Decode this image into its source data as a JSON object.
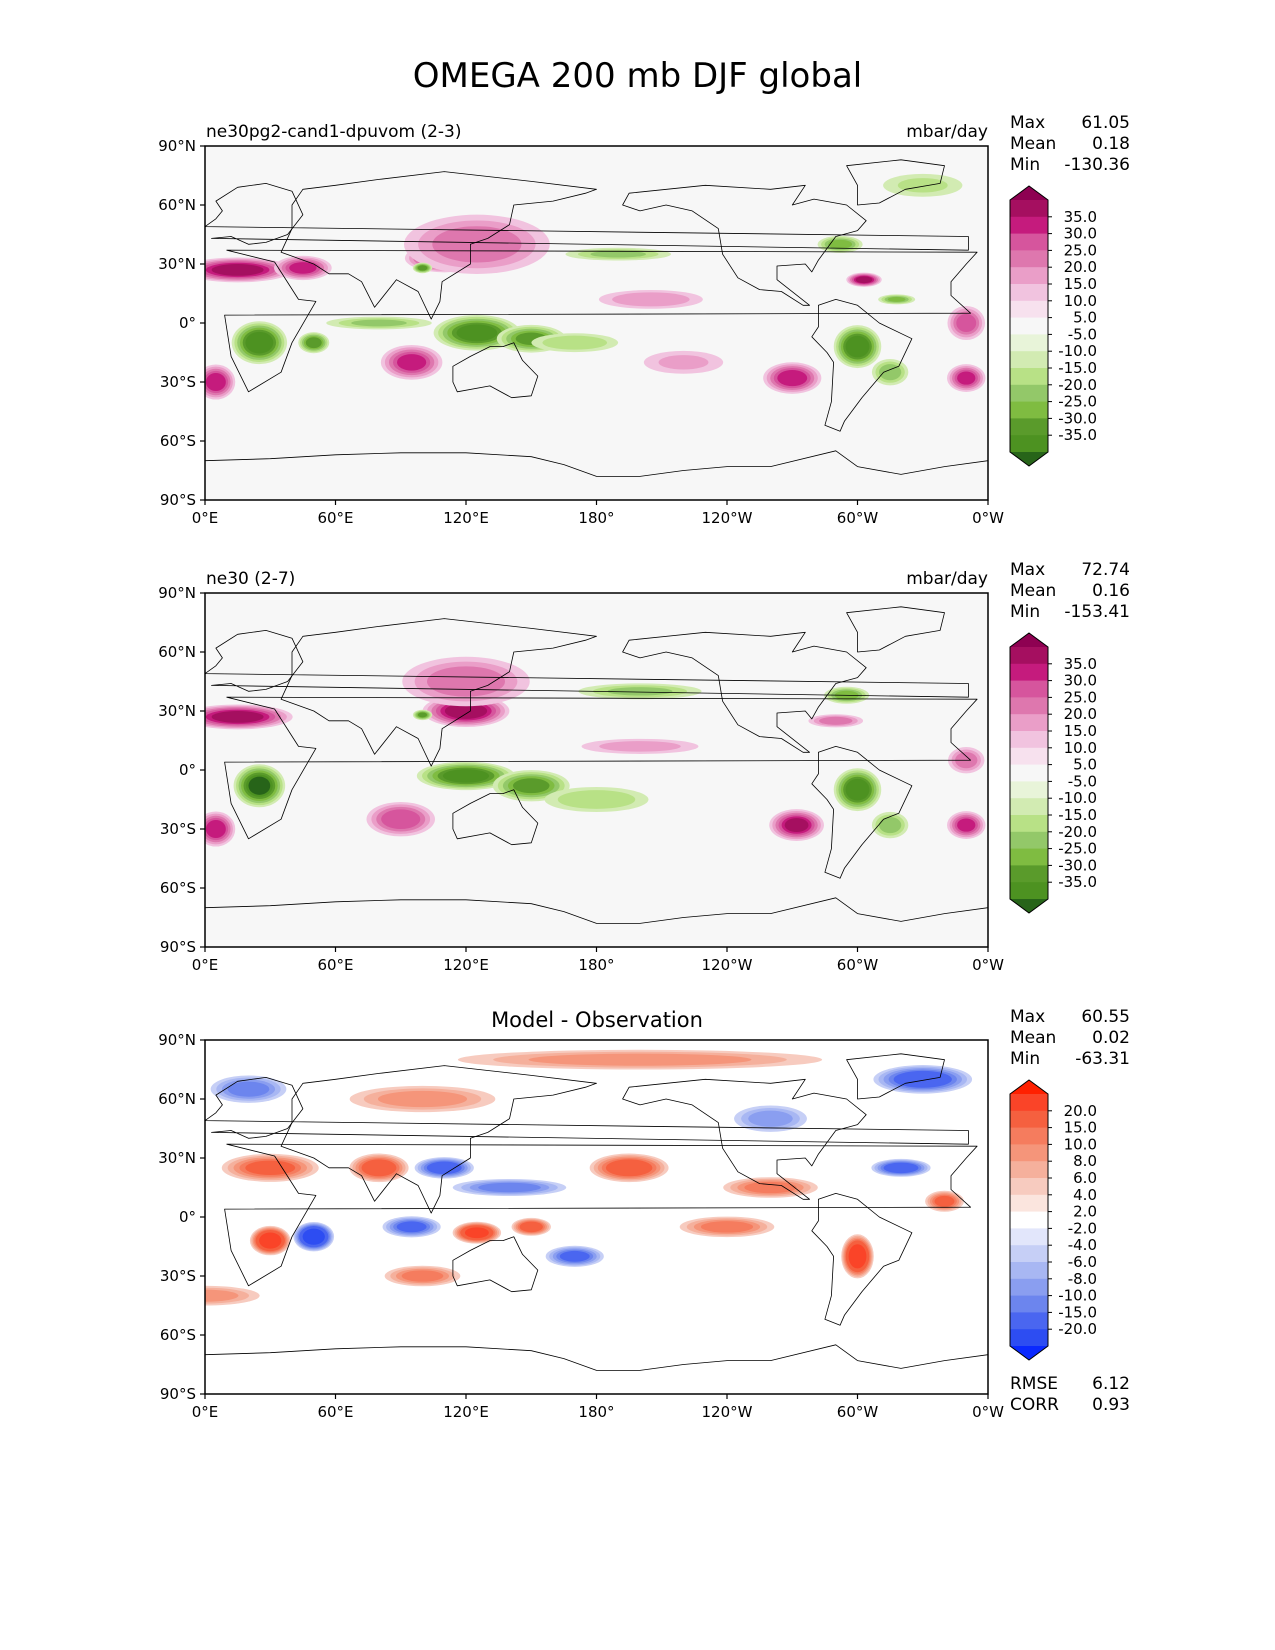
{
  "figure": {
    "title": "OMEGA 200 mb DJF global"
  },
  "chart_data": [
    {
      "type": "heatmap",
      "panel_label": "ne30pg2-cand1-dpuvom (2-3)",
      "units": "mbar/day",
      "stats": [
        {
          "label": "Max",
          "value": "61.05"
        },
        {
          "label": "Mean",
          "value": "0.18"
        },
        {
          "label": "Min",
          "value": "-130.36"
        }
      ],
      "x_ticks": [
        "0°E",
        "60°E",
        "120°E",
        "180°",
        "120°W",
        "60°W",
        "0°W"
      ],
      "y_ticks": [
        "90°N",
        "60°N",
        "30°N",
        "0°",
        "30°S",
        "60°S",
        "90°S"
      ],
      "xlim": [
        0,
        360
      ],
      "ylim": [
        -90,
        90
      ],
      "colorbar": {
        "labels": [
          "35.0",
          "30.0",
          "25.0",
          "20.0",
          "15.0",
          "10.0",
          "5.0",
          "-5.0",
          "-10.0",
          "-15.0",
          "-20.0",
          "-25.0",
          "-30.0",
          "-35.0"
        ],
        "colors": [
          "#8e0152",
          "#a50f60",
          "#c51b7d",
          "#d6559d",
          "#de77ae",
          "#ea9ec8",
          "#f1c3df",
          "#f7e1ee",
          "#f7f7f7",
          "#e8f4d9",
          "#d2ebb2",
          "#b8e186",
          "#93c869",
          "#7fbc41",
          "#5a9b2b",
          "#4d9221",
          "#276419"
        ]
      },
      "features": [
        {
          "lon": 15,
          "lat": 27,
          "v": 32,
          "rx": 28,
          "ry": 7
        },
        {
          "lon": 45,
          "lat": 28,
          "v": 26,
          "rx": 15,
          "ry": 7
        },
        {
          "lon": 110,
          "lat": 33,
          "v": 32,
          "rx": 20,
          "ry": 8
        },
        {
          "lon": 125,
          "lat": 40,
          "v": 18,
          "rx": 40,
          "ry": 18
        },
        {
          "lon": 100,
          "lat": 28,
          "v": -28,
          "rx": 5,
          "ry": 3
        },
        {
          "lon": 25,
          "lat": -10,
          "v": -34,
          "rx": 14,
          "ry": 12
        },
        {
          "lon": 50,
          "lat": -10,
          "v": -28,
          "rx": 8,
          "ry": 6
        },
        {
          "lon": 80,
          "lat": 0,
          "v": -15,
          "rx": 30,
          "ry": 4
        },
        {
          "lon": 125,
          "lat": -5,
          "v": -32,
          "rx": 22,
          "ry": 10
        },
        {
          "lon": 150,
          "lat": -8,
          "v": -25,
          "rx": 18,
          "ry": 8
        },
        {
          "lon": 170,
          "lat": -10,
          "v": -14,
          "rx": 25,
          "ry": 6
        },
        {
          "lon": 95,
          "lat": -20,
          "v": 26,
          "rx": 16,
          "ry": 10
        },
        {
          "lon": 5,
          "lat": -30,
          "v": 28,
          "rx": 10,
          "ry": 10
        },
        {
          "lon": 205,
          "lat": 12,
          "v": 14,
          "rx": 30,
          "ry": 6
        },
        {
          "lon": 190,
          "lat": 35,
          "v": -15,
          "rx": 30,
          "ry": 4
        },
        {
          "lon": 300,
          "lat": -12,
          "v": -34,
          "rx": 12,
          "ry": 12
        },
        {
          "lon": 315,
          "lat": -25,
          "v": -18,
          "rx": 10,
          "ry": 8
        },
        {
          "lon": 270,
          "lat": -28,
          "v": 28,
          "rx": 15,
          "ry": 9
        },
        {
          "lon": 292,
          "lat": 40,
          "v": -22,
          "rx": 12,
          "ry": 5
        },
        {
          "lon": 303,
          "lat": 22,
          "v": 32,
          "rx": 9,
          "ry": 4
        },
        {
          "lon": 318,
          "lat": 12,
          "v": -20,
          "rx": 10,
          "ry": 3
        },
        {
          "lon": 350,
          "lat": 0,
          "v": 22,
          "rx": 10,
          "ry": 10
        },
        {
          "lon": 350,
          "lat": -28,
          "v": 26,
          "rx": 10,
          "ry": 8
        },
        {
          "lon": 330,
          "lat": 70,
          "v": -10,
          "rx": 25,
          "ry": 8
        },
        {
          "lon": 220,
          "lat": -20,
          "v": 10,
          "rx": 25,
          "ry": 8
        }
      ]
    },
    {
      "type": "heatmap",
      "panel_label": "ne30 (2-7)",
      "units": "mbar/day",
      "stats": [
        {
          "label": "Max",
          "value": "72.74"
        },
        {
          "label": "Mean",
          "value": "0.16"
        },
        {
          "label": "Min",
          "value": "-153.41"
        }
      ],
      "x_ticks": [
        "0°E",
        "60°E",
        "120°E",
        "180°",
        "120°W",
        "60°W",
        "0°W"
      ],
      "y_ticks": [
        "90°N",
        "60°N",
        "30°N",
        "0°",
        "30°S",
        "60°S",
        "90°S"
      ],
      "xlim": [
        0,
        360
      ],
      "ylim": [
        -90,
        90
      ],
      "colorbar": {
        "labels": [
          "35.0",
          "30.0",
          "25.0",
          "20.0",
          "15.0",
          "10.0",
          "5.0",
          "-5.0",
          "-10.0",
          "-15.0",
          "-20.0",
          "-25.0",
          "-30.0",
          "-35.0"
        ],
        "colors": [
          "#8e0152",
          "#a50f60",
          "#c51b7d",
          "#d6559d",
          "#de77ae",
          "#ea9ec8",
          "#f1c3df",
          "#f7e1ee",
          "#f7f7f7",
          "#e8f4d9",
          "#d2ebb2",
          "#b8e186",
          "#93c869",
          "#7fbc41",
          "#5a9b2b",
          "#4d9221",
          "#276419"
        ]
      },
      "features": [
        {
          "lon": 15,
          "lat": 27,
          "v": 32,
          "rx": 28,
          "ry": 7
        },
        {
          "lon": 120,
          "lat": 30,
          "v": 33,
          "rx": 22,
          "ry": 9
        },
        {
          "lon": 120,
          "lat": 45,
          "v": 18,
          "rx": 35,
          "ry": 15
        },
        {
          "lon": 100,
          "lat": 28,
          "v": -26,
          "rx": 5,
          "ry": 3
        },
        {
          "lon": 25,
          "lat": -8,
          "v": -35,
          "rx": 13,
          "ry": 12
        },
        {
          "lon": 120,
          "lat": -3,
          "v": -32,
          "rx": 25,
          "ry": 8
        },
        {
          "lon": 150,
          "lat": -8,
          "v": -26,
          "rx": 20,
          "ry": 9
        },
        {
          "lon": 180,
          "lat": -15,
          "v": -14,
          "rx": 30,
          "ry": 8
        },
        {
          "lon": 90,
          "lat": -25,
          "v": 24,
          "rx": 18,
          "ry": 10
        },
        {
          "lon": 5,
          "lat": -30,
          "v": 28,
          "rx": 10,
          "ry": 10
        },
        {
          "lon": 200,
          "lat": 40,
          "v": -15,
          "rx": 35,
          "ry": 5
        },
        {
          "lon": 200,
          "lat": 12,
          "v": 12,
          "rx": 35,
          "ry": 5
        },
        {
          "lon": 300,
          "lat": -10,
          "v": -34,
          "rx": 12,
          "ry": 12
        },
        {
          "lon": 315,
          "lat": -28,
          "v": -18,
          "rx": 10,
          "ry": 8
        },
        {
          "lon": 272,
          "lat": -28,
          "v": 30,
          "rx": 14,
          "ry": 9
        },
        {
          "lon": 295,
          "lat": 38,
          "v": -22,
          "rx": 12,
          "ry": 5
        },
        {
          "lon": 290,
          "lat": 25,
          "v": 18,
          "rx": 15,
          "ry": 4
        },
        {
          "lon": 350,
          "lat": -28,
          "v": 26,
          "rx": 10,
          "ry": 8
        },
        {
          "lon": 350,
          "lat": 5,
          "v": 18,
          "rx": 10,
          "ry": 8
        }
      ]
    },
    {
      "type": "heatmap",
      "panel_label": "Model - Observation",
      "units": "",
      "stats": [
        {
          "label": "Max",
          "value": "60.55"
        },
        {
          "label": "Mean",
          "value": "0.02"
        },
        {
          "label": "Min",
          "value": "-63.31"
        }
      ],
      "extra_stats": [
        {
          "label": "RMSE",
          "value": "6.12"
        },
        {
          "label": "CORR",
          "value": "0.93"
        }
      ],
      "x_ticks": [
        "0°E",
        "60°E",
        "120°E",
        "180°",
        "120°W",
        "60°W",
        "0°W"
      ],
      "y_ticks": [
        "90°N",
        "60°N",
        "30°N",
        "0°",
        "30°S",
        "60°S",
        "90°S"
      ],
      "xlim": [
        0,
        360
      ],
      "ylim": [
        -90,
        90
      ],
      "colorbar": {
        "labels": [
          "20.0",
          "15.0",
          "10.0",
          "8.0",
          "6.0",
          "4.0",
          "2.0",
          "-2.0",
          "-4.0",
          "-6.0",
          "-8.0",
          "-10.0",
          "-15.0",
          "-20.0"
        ],
        "colors": [
          "#ff2000",
          "#fa4428",
          "#f5603f",
          "#f57c5e",
          "#f5957a",
          "#f5b09c",
          "#f7cbbf",
          "#fbe5de",
          "#ffffff",
          "#e2e6fb",
          "#c6cff6",
          "#a8b7f3",
          "#8a9ef0",
          "#6c85ee",
          "#4a66f0",
          "#2d4df2",
          "#0a29ff"
        ]
      },
      "features": [
        {
          "lon": 30,
          "lat": -12,
          "v": 18,
          "rx": 10,
          "ry": 8
        },
        {
          "lon": 50,
          "lat": -10,
          "v": -18,
          "rx": 10,
          "ry": 8
        },
        {
          "lon": 30,
          "lat": 25,
          "v": 10,
          "rx": 25,
          "ry": 8
        },
        {
          "lon": 80,
          "lat": 25,
          "v": 12,
          "rx": 15,
          "ry": 8
        },
        {
          "lon": 110,
          "lat": 25,
          "v": -12,
          "rx": 15,
          "ry": 6
        },
        {
          "lon": 125,
          "lat": -8,
          "v": 16,
          "rx": 12,
          "ry": 6
        },
        {
          "lon": 150,
          "lat": -5,
          "v": 12,
          "rx": 10,
          "ry": 5
        },
        {
          "lon": 95,
          "lat": -5,
          "v": -10,
          "rx": 15,
          "ry": 6
        },
        {
          "lon": 195,
          "lat": 25,
          "v": 12,
          "rx": 20,
          "ry": 8
        },
        {
          "lon": 170,
          "lat": -20,
          "v": -10,
          "rx": 15,
          "ry": 6
        },
        {
          "lon": 300,
          "lat": -20,
          "v": 18,
          "rx": 8,
          "ry": 12
        },
        {
          "lon": 320,
          "lat": 25,
          "v": -12,
          "rx": 15,
          "ry": 5
        },
        {
          "lon": 340,
          "lat": 8,
          "v": 10,
          "rx": 10,
          "ry": 6
        },
        {
          "lon": 330,
          "lat": 70,
          "v": -12,
          "rx": 25,
          "ry": 8
        },
        {
          "lon": 20,
          "lat": 65,
          "v": -8,
          "rx": 20,
          "ry": 8
        },
        {
          "lon": 200,
          "lat": 80,
          "v": 6,
          "rx": 100,
          "ry": 6
        },
        {
          "lon": 140,
          "lat": 15,
          "v": -8,
          "rx": 30,
          "ry": 5
        },
        {
          "lon": 100,
          "lat": -30,
          "v": 8,
          "rx": 20,
          "ry": 6
        },
        {
          "lon": 240,
          "lat": -5,
          "v": 8,
          "rx": 25,
          "ry": 6
        },
        {
          "lon": 0,
          "lat": -40,
          "v": 6,
          "rx": 30,
          "ry": 6
        },
        {
          "lon": 100,
          "lat": 60,
          "v": 6,
          "rx": 40,
          "ry": 8
        },
        {
          "lon": 260,
          "lat": 50,
          "v": -6,
          "rx": 20,
          "ry": 8
        },
        {
          "lon": 260,
          "lat": 15,
          "v": 8,
          "rx": 25,
          "ry": 6
        }
      ]
    }
  ]
}
